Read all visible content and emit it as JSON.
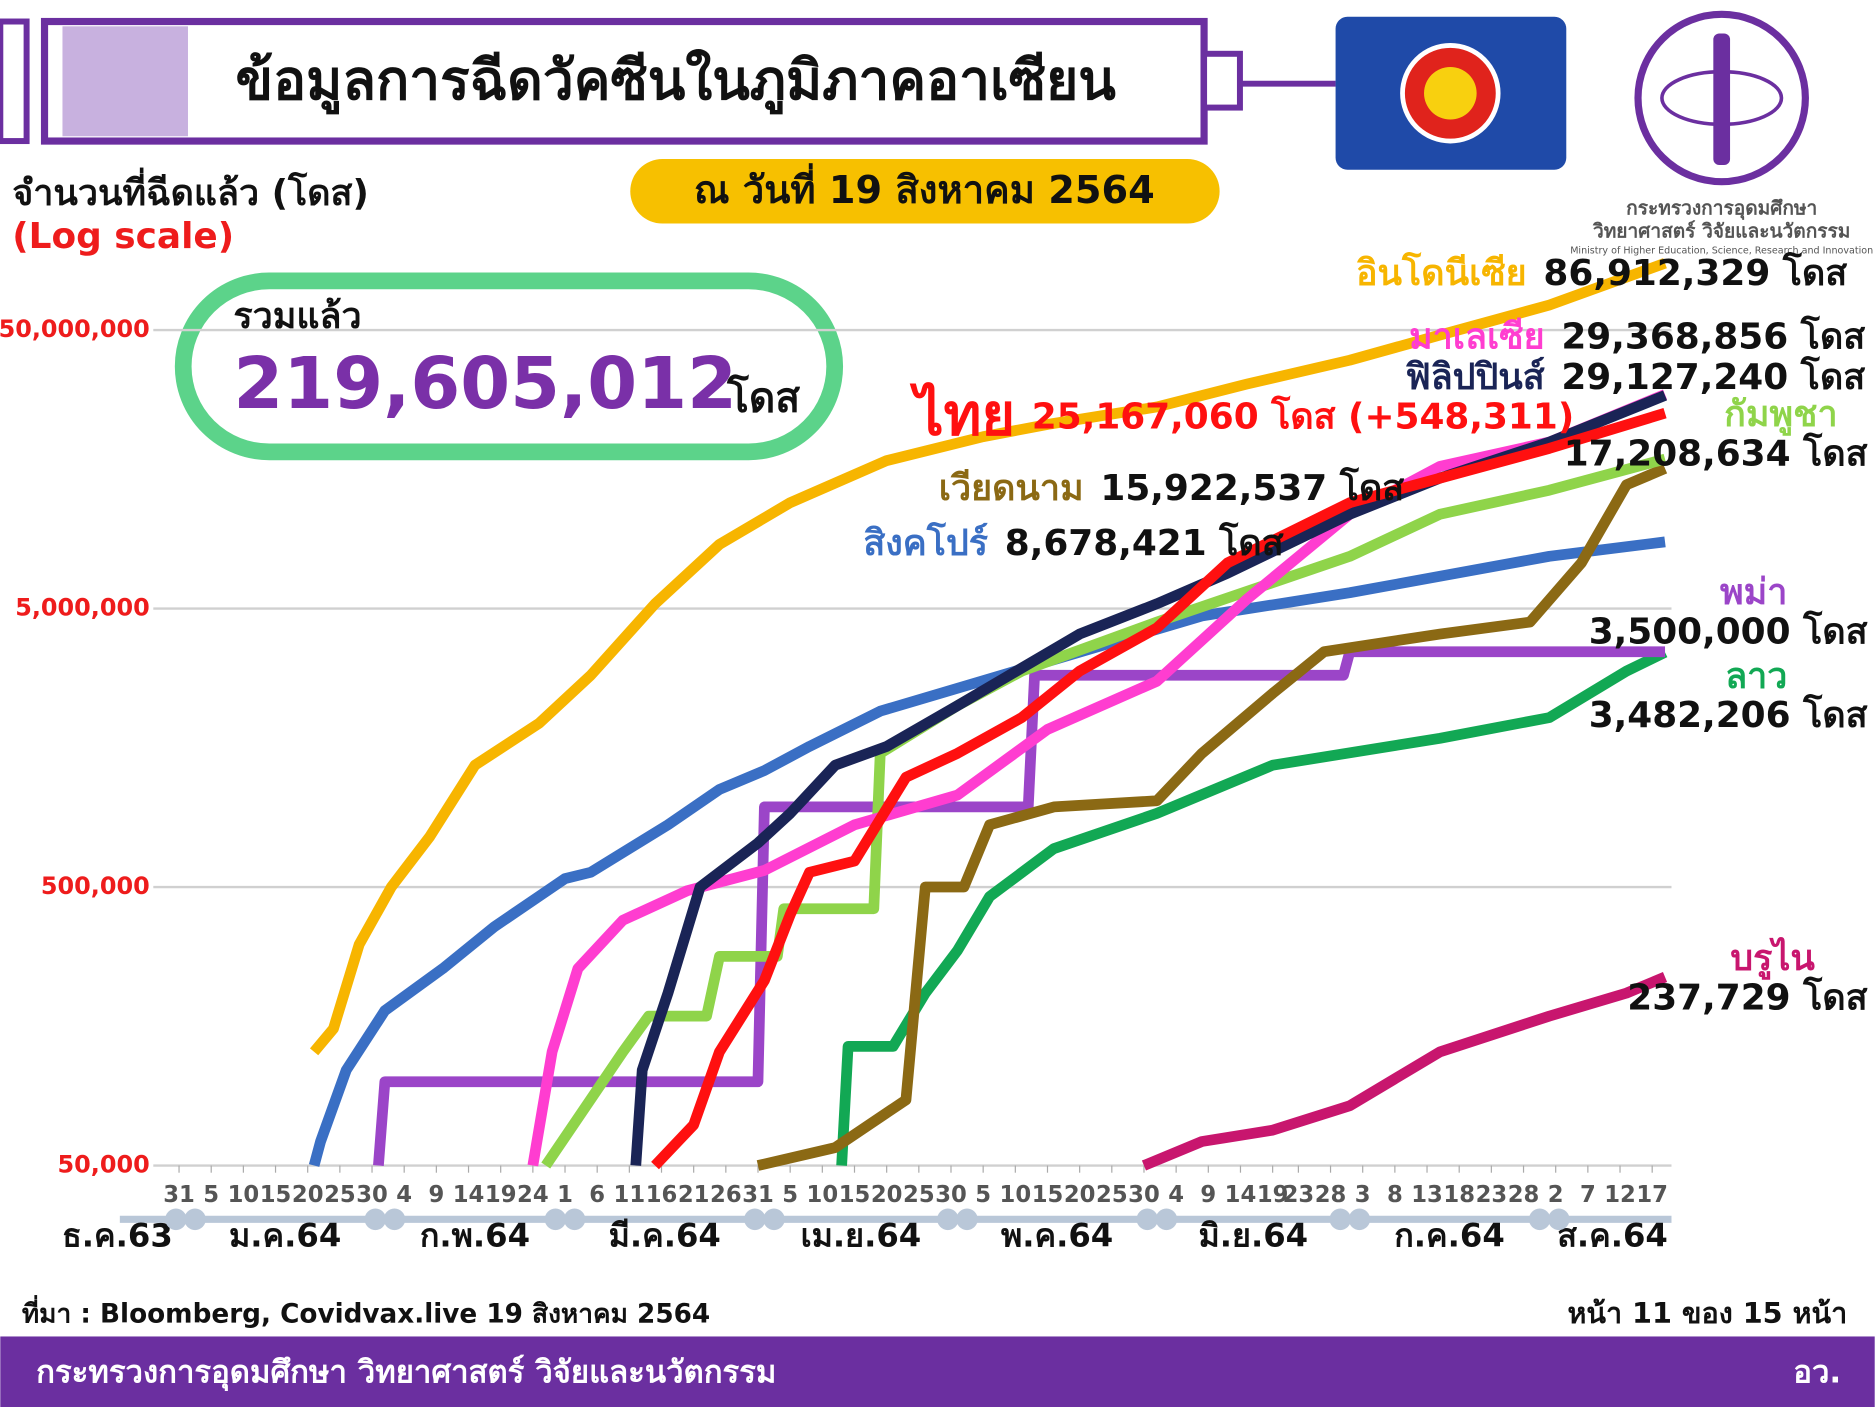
{
  "header": {
    "title": "ข้อมูลการฉีดวัคซีนในภูมิภาคอาเซียน",
    "date": "ณ วันที่ 19 สิงหาคม 2564",
    "logo_line1": "กระทรวงการอุดมศึกษา",
    "logo_line2": "วิทยาศาสตร์ วิจัยและนวัตกรรม",
    "logo_line3": "Ministry of Higher Education, Science, Research and Innovation"
  },
  "chart_data": {
    "type": "line",
    "y_label": "จำนวนที่ฉีดแล้ว (โดส)",
    "scale_note": "(Log scale)",
    "log_scale": true,
    "grid": true,
    "total_title": "รวมแล้ว",
    "total_value": "219,605,012",
    "total_unit": "โดส",
    "xlim": [
      "2020-12-27",
      "2021-08-20"
    ],
    "ylim": [
      50000,
      100000000
    ],
    "yticks": [
      {
        "value": 50000,
        "label": "50,000"
      },
      {
        "value": 500000,
        "label": "500,000"
      },
      {
        "value": 5000000,
        "label": "5,000,000"
      },
      {
        "value": 50000000,
        "label": "50,000,000"
      }
    ],
    "xticks": [
      {
        "value": "2020-12-31",
        "label": "31"
      },
      {
        "value": "2021-01-05",
        "label": "5"
      },
      {
        "value": "2021-01-10",
        "label": "10"
      },
      {
        "value": "2021-01-15",
        "label": "15"
      },
      {
        "value": "2021-01-20",
        "label": "20"
      },
      {
        "value": "2021-01-25",
        "label": "25"
      },
      {
        "value": "2021-01-30",
        "label": "30"
      },
      {
        "value": "2021-02-04",
        "label": "4"
      },
      {
        "value": "2021-02-09",
        "label": "9"
      },
      {
        "value": "2021-02-14",
        "label": "14"
      },
      {
        "value": "2021-02-19",
        "label": "19"
      },
      {
        "value": "2021-02-24",
        "label": "24"
      },
      {
        "value": "2021-03-01",
        "label": "1"
      },
      {
        "value": "2021-03-06",
        "label": "6"
      },
      {
        "value": "2021-03-11",
        "label": "11"
      },
      {
        "value": "2021-03-16",
        "label": "16"
      },
      {
        "value": "2021-03-21",
        "label": "21"
      },
      {
        "value": "2021-03-26",
        "label": "26"
      },
      {
        "value": "2021-03-31",
        "label": "31"
      },
      {
        "value": "2021-04-05",
        "label": "5"
      },
      {
        "value": "2021-04-10",
        "label": "10"
      },
      {
        "value": "2021-04-15",
        "label": "15"
      },
      {
        "value": "2021-04-20",
        "label": "20"
      },
      {
        "value": "2021-04-25",
        "label": "25"
      },
      {
        "value": "2021-04-30",
        "label": "30"
      },
      {
        "value": "2021-05-05",
        "label": "5"
      },
      {
        "value": "2021-05-10",
        "label": "10"
      },
      {
        "value": "2021-05-15",
        "label": "15"
      },
      {
        "value": "2021-05-20",
        "label": "20"
      },
      {
        "value": "2021-05-25",
        "label": "25"
      },
      {
        "value": "2021-05-30",
        "label": "30"
      },
      {
        "value": "2021-06-04",
        "label": "4"
      },
      {
        "value": "2021-06-09",
        "label": "9"
      },
      {
        "value": "2021-06-14",
        "label": "14"
      },
      {
        "value": "2021-06-19",
        "label": "19"
      },
      {
        "value": "2021-06-23",
        "label": "23"
      },
      {
        "value": "2021-06-28",
        "label": "28"
      },
      {
        "value": "2021-07-03",
        "label": "3"
      },
      {
        "value": "2021-07-08",
        "label": "8"
      },
      {
        "value": "2021-07-13",
        "label": "13"
      },
      {
        "value": "2021-07-18",
        "label": "18"
      },
      {
        "value": "2021-07-23",
        "label": "23"
      },
      {
        "value": "2021-07-28",
        "label": "28"
      },
      {
        "value": "2021-08-02",
        "label": "2"
      },
      {
        "value": "2021-08-07",
        "label": "7"
      },
      {
        "value": "2021-08-12",
        "label": "12"
      },
      {
        "value": "2021-08-17",
        "label": "17"
      }
    ],
    "month_labels": [
      "ธ.ค.63",
      "ม.ค.64",
      "ก.พ.64",
      "มี.ค.64",
      "เม.ย.64",
      "พ.ค.64",
      "มิ.ย.64",
      "ก.ค.64",
      "ส.ค.64"
    ],
    "series": [
      {
        "name": "อินโดนีเซีย",
        "end_label": "86,912,329 โดส",
        "color": "#f7b500",
        "x": [
          "2021-01-21",
          "2021-01-24",
          "2021-01-28",
          "2021-02-02",
          "2021-02-08",
          "2021-02-15",
          "2021-02-25",
          "2021-03-05",
          "2021-03-15",
          "2021-03-25",
          "2021-04-05",
          "2021-04-20",
          "2021-05-05",
          "2021-05-15",
          "2021-06-01",
          "2021-06-15",
          "2021-07-01",
          "2021-07-15",
          "2021-08-01",
          "2021-08-19"
        ],
        "values": [
          128000,
          155000,
          311000,
          500000,
          760000,
          1370000,
          1940000,
          2880000,
          5200000,
          8500000,
          12000000,
          17000000,
          20700000,
          22900000,
          26500000,
          32000000,
          39000000,
          48000000,
          61500000,
          86912329
        ]
      },
      {
        "name": "มาเลเซีย",
        "end_label": "29,368,856 โดส",
        "color": "#ff3dd0",
        "x": [
          "2021-02-24",
          "2021-02-27",
          "2021-03-03",
          "2021-03-10",
          "2021-03-20",
          "2021-04-01",
          "2021-04-15",
          "2021-05-01",
          "2021-05-15",
          "2021-06-01",
          "2021-06-15",
          "2021-07-01",
          "2021-07-15",
          "2021-08-01",
          "2021-08-19"
        ],
        "values": [
          50000,
          128000,
          255000,
          380000,
          485000,
          574000,
          836000,
          1070000,
          1840000,
          2740000,
          5400000,
          10900000,
          16200000,
          19800000,
          29368856
        ]
      },
      {
        "name": "ฟิลิปปินส์",
        "end_label": "29,127,240 โดส",
        "color": "#1a2456",
        "x": [
          "2021-03-12",
          "2021-03-13",
          "2021-03-17",
          "2021-03-22",
          "2021-03-31",
          "2021-04-05",
          "2021-04-12",
          "2021-04-20",
          "2021-05-01",
          "2021-05-20",
          "2021-06-01",
          "2021-06-12",
          "2021-07-01",
          "2021-07-15",
          "2021-08-01",
          "2021-08-19"
        ],
        "values": [
          50000,
          110000,
          208000,
          500000,
          720000,
          920000,
          1370000,
          1600000,
          2240000,
          4050000,
          5200000,
          6700000,
          10900000,
          14700000,
          19800000,
          29127240
        ]
      },
      {
        "name": "ไทย",
        "end_label": "25,167,060 โดส (+548,311)",
        "color": "#ff1010",
        "x": [
          "2021-03-15",
          "2021-03-21",
          "2021-03-25",
          "2021-04-01",
          "2021-04-05",
          "2021-04-08",
          "2021-04-15",
          "2021-04-23",
          "2021-05-01",
          "2021-05-11",
          "2021-05-20",
          "2021-06-01",
          "2021-06-12",
          "2021-07-01",
          "2021-07-15",
          "2021-08-01",
          "2021-08-19"
        ],
        "values": [
          50000,
          70000,
          128000,
          231000,
          398000,
          565000,
          620000,
          1240000,
          1510000,
          2030000,
          2980000,
          4260000,
          7300000,
          12000000,
          14700000,
          18800000,
          25167060
        ]
      },
      {
        "name": "กัมพูชา",
        "end_label": "17,208,634 โดส",
        "color": "#8fd44a",
        "x": [
          "2021-02-26",
          "2021-03-10",
          "2021-03-14",
          "2021-03-23",
          "2021-03-25",
          "2021-04-03",
          "2021-04-04",
          "2021-04-18",
          "2021-04-19",
          "2021-05-01",
          "2021-05-11",
          "2021-06-01",
          "2021-07-01",
          "2021-07-15",
          "2021-08-01",
          "2021-08-19"
        ],
        "values": [
          50000,
          128000,
          172000,
          172000,
          282000,
          282000,
          418000,
          418000,
          1510000,
          2240000,
          2980000,
          4470000,
          7700000,
          10900000,
          13300000,
          17208634
        ]
      },
      {
        "name": "เวียดนาม",
        "end_label": "15,922,537 โดส",
        "color": "#8b6914",
        "x": [
          "2021-03-31",
          "2021-04-12",
          "2021-04-23",
          "2021-04-26",
          "2021-05-02",
          "2021-05-06",
          "2021-05-16",
          "2021-06-01",
          "2021-06-08",
          "2021-06-19",
          "2021-06-27",
          "2021-07-15",
          "2021-07-29",
          "2021-08-06",
          "2021-08-13",
          "2021-08-19"
        ],
        "values": [
          50000,
          58000,
          86000,
          500000,
          500000,
          836000,
          970000,
          1020000,
          1510000,
          2480000,
          3500000,
          4050000,
          4470000,
          7300000,
          13900000,
          15922537
        ]
      },
      {
        "name": "สิงคโปร์",
        "end_label": "8,678,421 โดส",
        "color": "#3a6fc4",
        "x": [
          "2021-01-21",
          "2021-01-22",
          "2021-01-26",
          "2021-02-01",
          "2021-02-10",
          "2021-02-18",
          "2021-03-01",
          "2021-03-05",
          "2021-03-17",
          "2021-03-25",
          "2021-04-01",
          "2021-04-08",
          "2021-04-19",
          "2021-05-10",
          "2021-06-08",
          "2021-07-01",
          "2021-08-01",
          "2021-08-19"
        ],
        "values": [
          50000,
          61000,
          110000,
          180000,
          255000,
          360000,
          536000,
          565000,
          836000,
          1120000,
          1310000,
          1600000,
          2140000,
          2980000,
          4700000,
          5700000,
          7700000,
          8678421
        ]
      },
      {
        "name": "พม่า",
        "end_label": "3,500,000 โดส",
        "color": "#9b45c8",
        "x": [
          "2021-01-31",
          "2021-02-01",
          "2021-03-31",
          "2021-04-01",
          "2021-05-12",
          "2021-05-13",
          "2021-06-30",
          "2021-07-01",
          "2021-08-19"
        ],
        "values": [
          50000,
          100000,
          100000,
          970000,
          970000,
          2880000,
          2880000,
          3500000,
          3500000
        ]
      },
      {
        "name": "ลาว",
        "end_label": "3,482,206 โดส",
        "color": "#12a854",
        "x": [
          "2021-04-13",
          "2021-04-14",
          "2021-04-21",
          "2021-04-26",
          "2021-05-01",
          "2021-05-06",
          "2021-05-16",
          "2021-06-01",
          "2021-06-19",
          "2021-07-15",
          "2021-08-01",
          "2021-08-13",
          "2021-08-19"
        ],
        "values": [
          50000,
          134000,
          134000,
          208000,
          296000,
          462000,
          687000,
          920000,
          1370000,
          1710000,
          2030000,
          2980000,
          3482206
        ]
      },
      {
        "name": "บรูไน",
        "end_label": "237,729 โดส",
        "color": "#c8166e",
        "x": [
          "2021-05-30",
          "2021-06-08",
          "2021-06-19",
          "2021-07-01",
          "2021-07-15",
          "2021-08-01",
          "2021-08-13",
          "2021-08-19"
        ],
        "values": [
          50000,
          61000,
          67000,
          82000,
          128000,
          172000,
          208000,
          237729
        ]
      }
    ]
  },
  "footer": {
    "source": "ที่มา : Bloomberg, Covidvax.live 19 สิงหาคม 2564",
    "page": "หน้า 11 ของ 15 หน้า",
    "ministry": "กระทรวงการอุดมศึกษา วิทยาศาสตร์ วิจัยและนวัตกรรม",
    "short": "อว."
  }
}
